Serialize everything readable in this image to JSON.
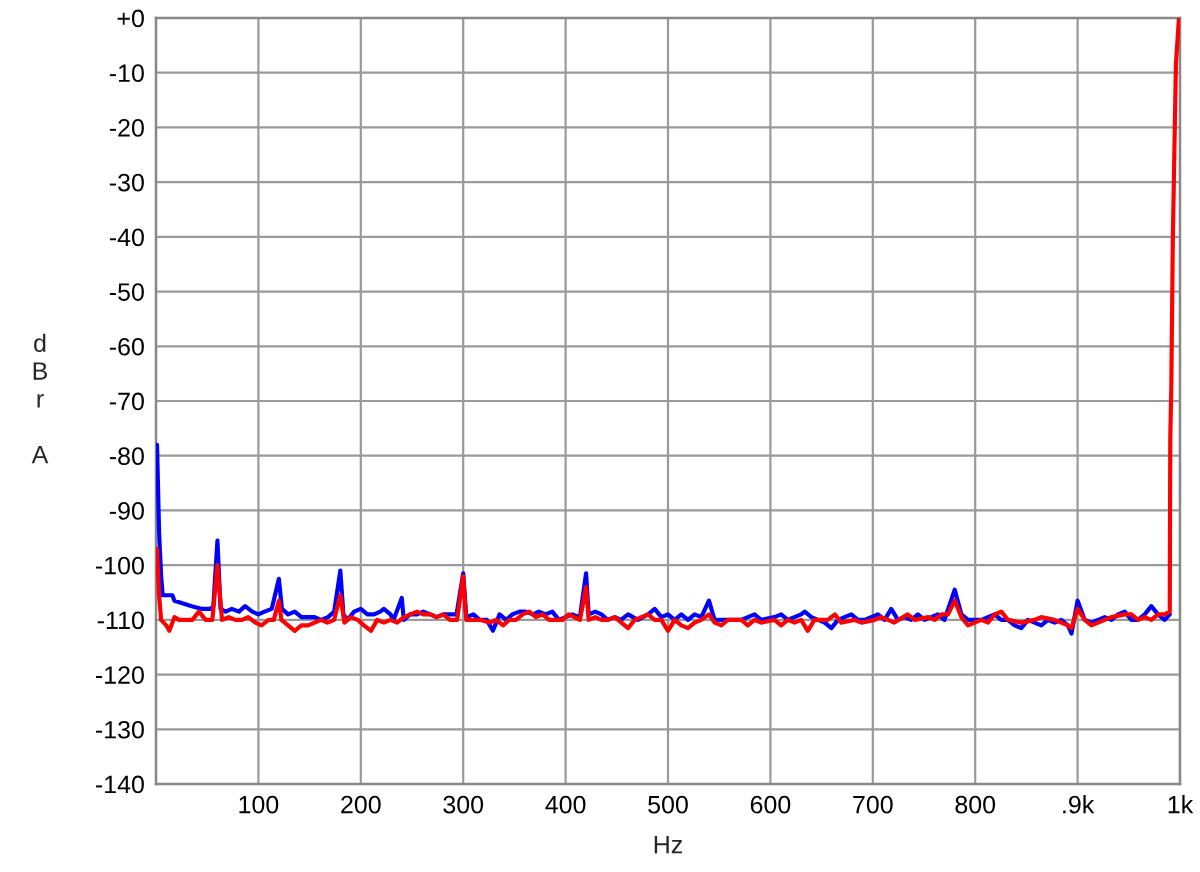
{
  "chart_data": {
    "type": "line",
    "xlabel": "Hz",
    "ylabel": "dBr A",
    "xlim": [
      0,
      1000
    ],
    "ylim": [
      -140,
      0
    ],
    "xticks": [
      100,
      200,
      300,
      400,
      500,
      600,
      700,
      800,
      {
        "value": 900,
        "label": ".9k"
      },
      {
        "value": 1000,
        "label": "1k"
      }
    ],
    "yticks": [
      {
        "value": 0,
        "label": "+0"
      },
      -10,
      -20,
      -30,
      -40,
      -50,
      -60,
      -70,
      -80,
      -90,
      -100,
      -110,
      -120,
      -130,
      -140
    ],
    "grid": true,
    "series": [
      {
        "color": "#0000ff",
        "x": [
          1,
          3,
          5,
          6.5,
          10,
          16,
          18,
          35,
          45,
          53,
          56,
          60,
          63,
          68,
          74,
          81,
          87,
          94,
          100,
          106,
          113,
          120,
          123,
          129,
          135.5,
          142,
          155,
          161,
          168,
          174,
          180,
          183,
          187,
          193.5,
          200,
          206.5,
          213,
          219,
          222.5,
          229,
          232,
          240,
          242,
          248,
          255,
          261,
          268,
          274,
          281,
          287,
          293.5,
          300,
          303,
          310,
          316,
          323,
          329,
          335.5,
          342,
          348,
          355,
          361,
          368,
          374,
          380.5,
          387,
          393.5,
          400,
          406.5,
          414,
          420,
          422.5,
          429,
          435,
          441,
          448,
          454,
          461,
          470.5,
          480.5,
          487,
          493.5,
          500,
          506.5,
          513,
          519.5,
          526,
          532.5,
          540,
          545.5,
          558.5,
          571.5,
          578,
          584.5,
          591,
          604,
          610.5,
          617,
          630,
          633.5,
          640,
          646.5,
          653,
          659.5,
          666,
          679,
          685.5,
          692,
          698.5,
          705,
          711.5,
          718,
          724.5,
          731,
          737.5,
          744,
          750.5,
          757,
          763.5,
          770,
          780,
          786.5,
          793,
          806,
          812.5,
          819,
          825.5,
          832,
          838.5,
          845,
          851.5,
          864.5,
          871,
          877.5,
          884,
          890.5,
          894,
          900,
          907,
          913.5,
          920,
          926.5,
          933,
          939.5,
          946,
          952.5,
          959,
          965.5,
          972,
          978.5,
          985,
          990
        ],
        "values": [
          -78,
          -94,
          -102,
          -105.5,
          -105.5,
          -105.5,
          -106.5,
          -107.5,
          -108,
          -108,
          -107.5,
          -95.5,
          -108,
          -108.5,
          -108,
          -108.5,
          -107.5,
          -108.5,
          -109,
          -108.5,
          -108,
          -102.5,
          -108,
          -109,
          -108.5,
          -109.5,
          -109.5,
          -110,
          -109.5,
          -108.5,
          -101,
          -109,
          -110,
          -108.5,
          -108,
          -109,
          -109,
          -108.5,
          -108,
          -109,
          -110,
          -106,
          -110,
          -109,
          -109,
          -108.5,
          -109,
          -109.5,
          -109,
          -109,
          -109,
          -101.5,
          -109.5,
          -109,
          -110,
          -110,
          -112,
          -109,
          -110,
          -109,
          -108.5,
          -108.5,
          -109,
          -108.5,
          -109,
          -108.5,
          -110,
          -109.5,
          -109,
          -109.5,
          -101.5,
          -109,
          -108.5,
          -109,
          -110,
          -109.5,
          -110,
          -109,
          -110,
          -109,
          -108,
          -109.5,
          -109,
          -110,
          -109,
          -110,
          -109,
          -109.5,
          -106.5,
          -110,
          -110,
          -110,
          -109.5,
          -109,
          -110,
          -109.5,
          -109,
          -110,
          -109,
          -108.5,
          -109.5,
          -110,
          -110.5,
          -111.5,
          -110,
          -109,
          -110,
          -110,
          -109.5,
          -109,
          -110,
          -108,
          -110,
          -109.5,
          -110,
          -109,
          -110,
          -109.5,
          -109,
          -110,
          -104.5,
          -109,
          -110,
          -110,
          -109.5,
          -109,
          -110,
          -110,
          -111,
          -111.5,
          -110,
          -111,
          -110,
          -110.5,
          -110,
          -111,
          -112.5,
          -106.5,
          -110,
          -110.5,
          -110,
          -109.5,
          -110,
          -109,
          -108.5,
          -110,
          -110,
          -109,
          -107.5,
          -109,
          -110,
          -109
        ]
      },
      {
        "color": "#ff0000",
        "x": [
          1,
          3,
          5,
          10,
          13,
          18,
          22.5,
          29,
          35.5,
          42,
          48.5,
          55,
          60,
          64.5,
          71,
          77.5,
          84,
          90,
          97,
          103,
          110,
          115,
          120,
          122.5,
          129,
          135.5,
          142,
          148.5,
          155,
          161,
          167.5,
          174,
          180,
          184,
          190,
          197,
          203,
          210,
          216,
          222.5,
          229,
          235.5,
          242,
          248.5,
          255,
          261,
          268,
          274,
          280.5,
          287,
          294,
          300,
          303,
          310,
          316,
          326,
          332,
          339,
          345,
          351.5,
          358,
          364.5,
          371,
          377.5,
          384,
          390,
          397,
          403,
          414,
          420,
          422.5,
          429,
          435,
          441.5,
          448,
          454.5,
          461,
          467.5,
          474,
          480.5,
          487,
          493.5,
          500,
          506.5,
          513,
          519.5,
          526,
          532.5,
          540,
          545.5,
          552,
          558.5,
          571.5,
          578,
          584.5,
          591,
          604,
          610.5,
          617,
          623.5,
          630,
          636.5,
          643,
          656,
          663,
          669,
          682,
          689,
          702,
          708,
          715,
          721,
          734,
          741,
          754,
          760.5,
          767,
          773.5,
          780,
          786.5,
          793,
          806,
          812.5,
          819,
          825.5,
          832,
          845,
          858,
          864.5,
          877.5,
          890.5,
          894,
          900,
          907,
          913.5,
          926.5,
          933,
          946,
          952.5,
          959,
          965.5,
          972,
          978.5,
          985,
          990,
          990.5,
          991.5,
          993,
          996,
          999
        ],
        "values": [
          -97,
          -105.5,
          -110,
          -111,
          -112,
          -109.5,
          -110,
          -110,
          -110,
          -108.5,
          -110,
          -110,
          -100,
          -110,
          -109.5,
          -110,
          -110,
          -109.5,
          -110.5,
          -111,
          -110,
          -110,
          -106.5,
          -110,
          -111,
          -112,
          -111,
          -111,
          -110.5,
          -110,
          -110.5,
          -110,
          -105.5,
          -110.5,
          -109.5,
          -110,
          -111,
          -112,
          -110,
          -110.5,
          -110,
          -110.5,
          -109.5,
          -109,
          -108.5,
          -109,
          -109,
          -109.5,
          -109,
          -110,
          -110,
          -102,
          -110,
          -110,
          -110,
          -110.5,
          -110,
          -111,
          -110,
          -110,
          -109,
          -108.5,
          -109.5,
          -109,
          -110,
          -110,
          -110,
          -109,
          -110,
          -104,
          -110,
          -109.5,
          -110,
          -110,
          -109.5,
          -110.5,
          -111.5,
          -110,
          -109.5,
          -109,
          -110,
          -110,
          -112,
          -110,
          -111,
          -111.5,
          -110.5,
          -110,
          -109,
          -110.5,
          -111,
          -110,
          -110,
          -111,
          -110,
          -110.5,
          -110,
          -111,
          -110,
          -110.5,
          -110,
          -112,
          -110,
          -110,
          -109,
          -110.5,
          -110,
          -110.5,
          -110,
          -109.5,
          -110,
          -110.5,
          -109,
          -110,
          -109.5,
          -110,
          -109,
          -109,
          -106.5,
          -109.5,
          -111,
          -110,
          -110.5,
          -109,
          -108.5,
          -110,
          -110.5,
          -110,
          -109.5,
          -110,
          -111,
          -111.5,
          -108,
          -110,
          -111,
          -110,
          -109.5,
          -109,
          -109,
          -110,
          -109.5,
          -110,
          -109,
          -109,
          -108.5,
          -77,
          -67.5,
          -40.5,
          -8.5,
          0
        ]
      }
    ]
  }
}
